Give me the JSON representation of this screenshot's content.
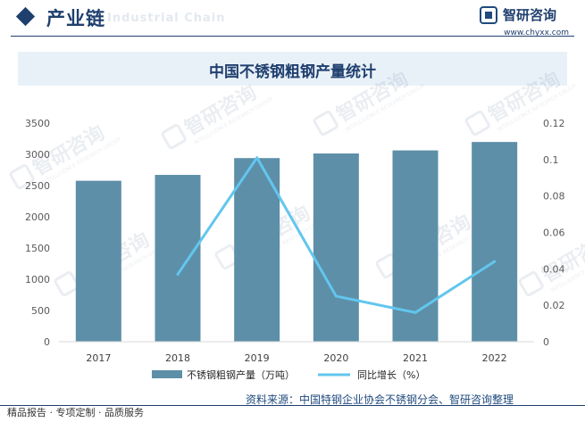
{
  "header": {
    "title": "产业链",
    "subtitle": "Industrial Chain"
  },
  "brand": {
    "name": "智研咨询",
    "url": "www.chyxx.com"
  },
  "watermark": {
    "text": "智研咨询",
    "subtext": "INTELLIGENCE RESEARCH GROUP"
  },
  "colors": {
    "bar": "#5d8fa8",
    "line": "#62c6ee",
    "header_accent": "#1f3f6e",
    "title_band": "#e9f1f8",
    "axis_text": "#595959"
  },
  "chart_data": {
    "type": "bar",
    "title": "中国不锈钢粗钢产量统计",
    "categories": [
      "2017",
      "2018",
      "2019",
      "2020",
      "2021",
      "2022"
    ],
    "series": [
      {
        "name": "不锈钢粗钢产量（万吨）",
        "type": "bar",
        "axis": "left",
        "values": [
          2577,
          2671,
          2940,
          3014,
          3063,
          3198
        ]
      },
      {
        "name": "同比增长（%）",
        "type": "line",
        "axis": "right",
        "values": [
          null,
          0.037,
          0.101,
          0.025,
          0.016,
          0.044
        ]
      }
    ],
    "ylim_left": [
      0,
      3500
    ],
    "yticks_left": [
      "0",
      "500",
      "1000",
      "1500",
      "2000",
      "2500",
      "3000",
      "3500"
    ],
    "ylim_right": [
      0,
      0.12
    ],
    "yticks_right": [
      "0",
      "0.02",
      "0.04",
      "0.06",
      "0.08",
      "0.1",
      "0.12"
    ],
    "grid": false,
    "legend_position": "bottom"
  },
  "source": "资料来源：中国特钢企业协会不锈钢分会、智研咨询整理",
  "footer": "精品报告 · 专项定制 · 品质服务"
}
